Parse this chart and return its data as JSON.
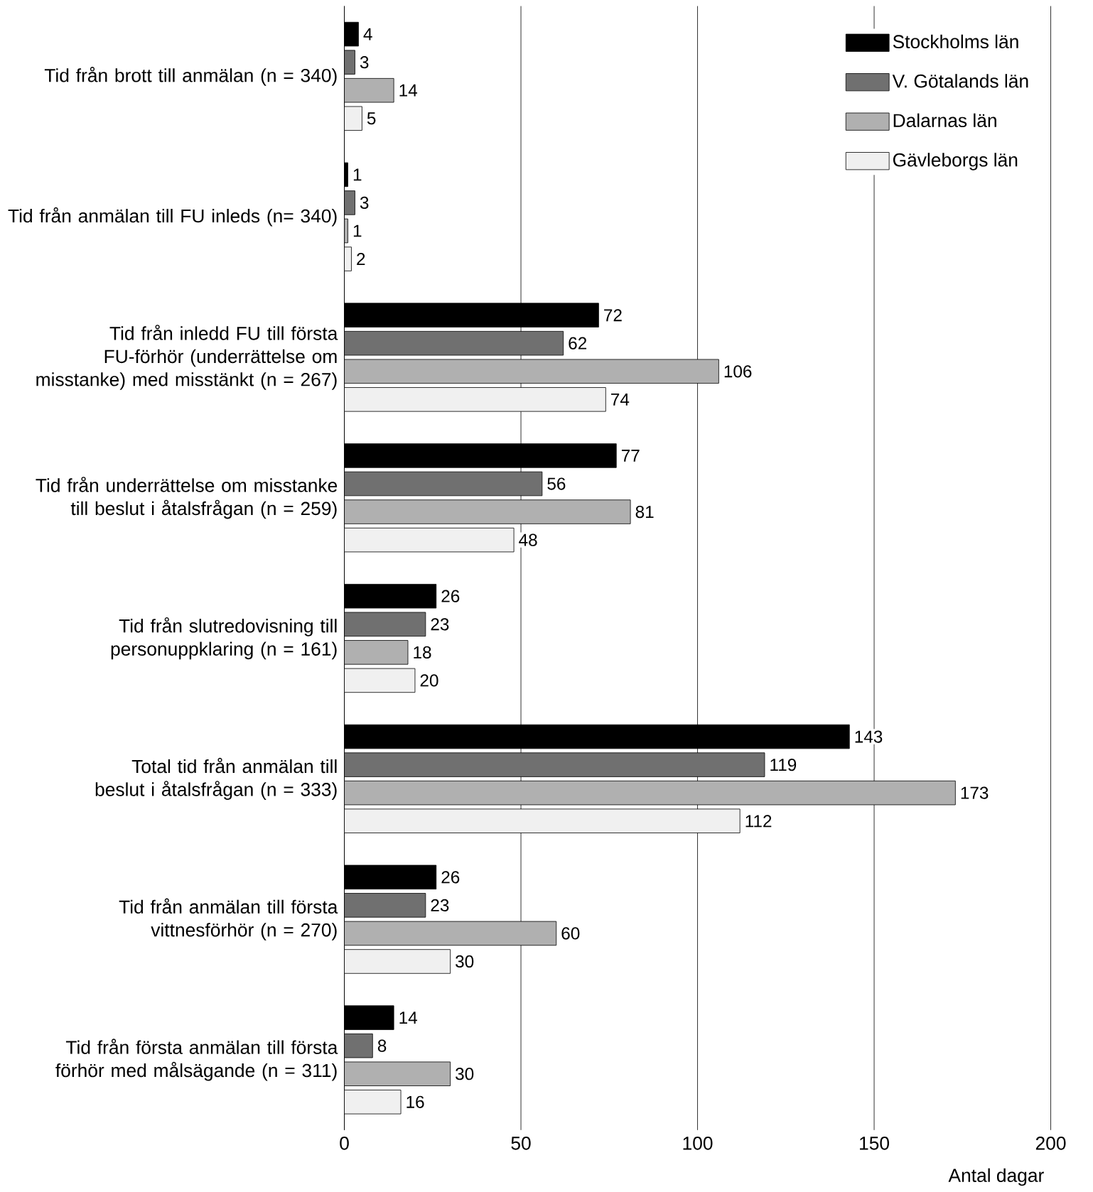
{
  "chart_data": {
    "type": "bar",
    "orientation": "horizontal",
    "xlabel": "Antal dagar",
    "categories": [
      "Tid från brott till anmälan (n = 340)",
      "Tid från anmälan till FU inleds (n= 340)",
      "Tid från inledd FU till första FU-förhör (underrättelse om misstanke) med misstänkt (n = 267)",
      "Tid från underrättelse om misstanke till beslut i åtalsfrågan (n = 259)",
      "Tid från slutredovisning till personuppklaring (n = 161)",
      "Total tid från anmälan till beslut i åtalsfrågan (n = 333)",
      "Tid från anmälan till första vittnesförhör (n = 270)",
      "Tid från första anmälan till första förhör med målsägande (n = 311)"
    ],
    "series": [
      {
        "name": "Stockholms län",
        "color": "#000000",
        "values": [
          4,
          1,
          72,
          77,
          26,
          143,
          26,
          14
        ]
      },
      {
        "name": "V. Götalands län",
        "color": "#707070",
        "values": [
          3,
          3,
          62,
          56,
          23,
          119,
          23,
          8
        ]
      },
      {
        "name": "Dalarnas län",
        "color": "#b0b0b0",
        "values": [
          14,
          1,
          106,
          81,
          18,
          173,
          60,
          30
        ]
      },
      {
        "name": "Gävleborgs län",
        "color": "#f0f0f0",
        "values": [
          5,
          2,
          74,
          48,
          20,
          112,
          30,
          16
        ]
      }
    ],
    "xlim": [
      0,
      200
    ],
    "xticks": [
      0,
      50,
      100,
      150,
      200
    ],
    "grid": "x",
    "legend": "top right",
    "data_labels": true
  }
}
